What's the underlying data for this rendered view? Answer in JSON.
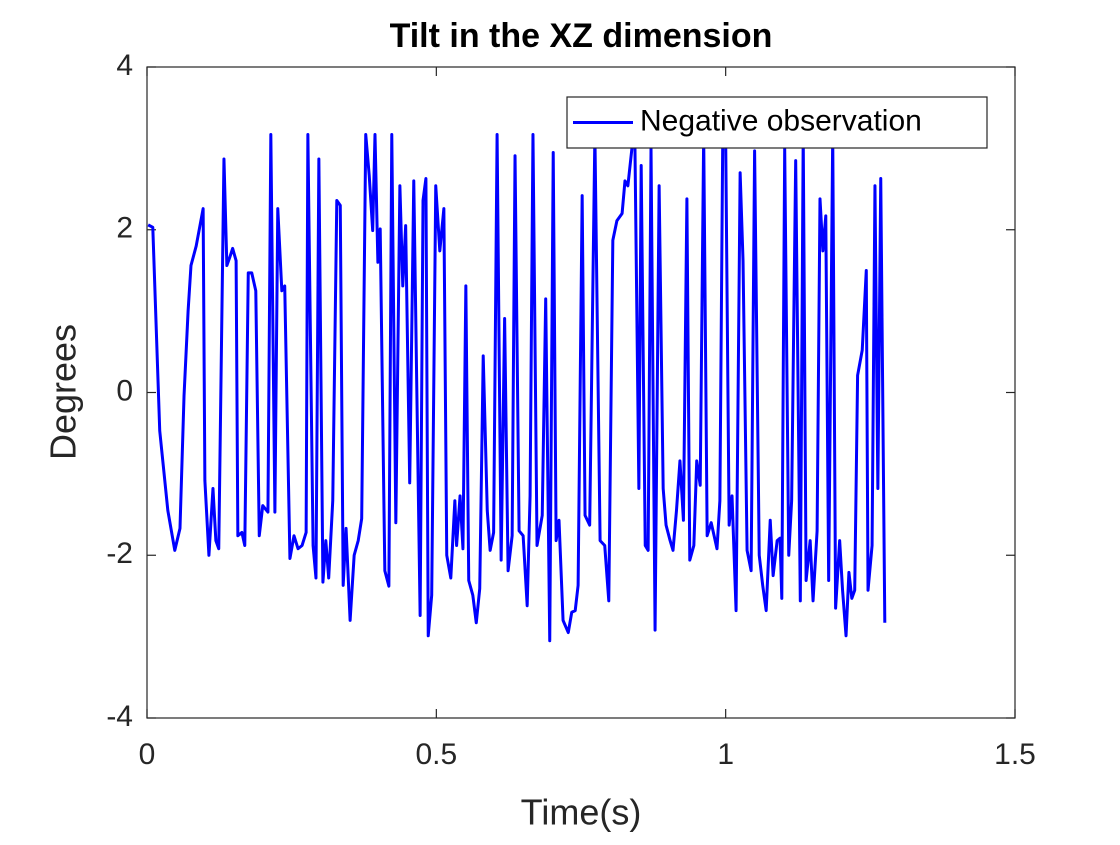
{
  "chart_data": {
    "type": "line",
    "title": "Tilt in the XZ dimension",
    "xlabel": "Time(s)",
    "ylabel": "Degrees",
    "xlim": [
      0,
      1.5
    ],
    "xticks": [
      0,
      0.5,
      1,
      1.5
    ],
    "ylim": [
      -4,
      4
    ],
    "yticks": [
      -4,
      -2,
      0,
      2,
      4
    ],
    "legend": "upper right",
    "grid": false,
    "x": [
      0.002,
      0.01,
      0.022,
      0.036,
      0.048,
      0.057,
      0.064,
      0.071,
      0.076,
      0.085,
      0.097,
      0.1,
      0.107,
      0.114,
      0.119,
      0.124,
      0.133,
      0.138,
      0.143,
      0.148,
      0.154,
      0.157,
      0.164,
      0.169,
      0.175,
      0.181,
      0.188,
      0.194,
      0.2,
      0.209,
      0.214,
      0.221,
      0.226,
      0.233,
      0.238,
      0.247,
      0.254,
      0.261,
      0.268,
      0.275,
      0.278,
      0.287,
      0.292,
      0.297,
      0.304,
      0.309,
      0.314,
      0.321,
      0.328,
      0.334,
      0.339,
      0.344,
      0.351,
      0.358,
      0.365,
      0.371,
      0.378,
      0.384,
      0.39,
      0.394,
      0.399,
      0.403,
      0.411,
      0.418,
      0.423,
      0.43,
      0.437,
      0.442,
      0.447,
      0.454,
      0.461,
      0.467,
      0.472,
      0.477,
      0.482,
      0.486,
      0.492,
      0.499,
      0.506,
      0.513,
      0.518,
      0.525,
      0.532,
      0.535,
      0.541,
      0.546,
      0.551,
      0.556,
      0.563,
      0.569,
      0.575,
      0.581,
      0.588,
      0.593,
      0.599,
      0.605,
      0.612,
      0.618,
      0.624,
      0.631,
      0.636,
      0.643,
      0.65,
      0.657,
      0.662,
      0.667,
      0.674,
      0.683,
      0.689,
      0.696,
      0.702,
      0.707,
      0.712,
      0.719,
      0.728,
      0.734,
      0.74,
      0.745,
      0.752,
      0.757,
      0.765,
      0.774,
      0.783,
      0.791,
      0.798,
      0.805,
      0.812,
      0.821,
      0.826,
      0.831,
      0.838,
      0.843,
      0.85,
      0.854,
      0.861,
      0.866,
      0.871,
      0.878,
      0.885,
      0.892,
      0.897,
      0.904,
      0.909,
      0.915,
      0.921,
      0.927,
      0.933,
      0.938,
      0.945,
      0.95,
      0.956,
      0.962,
      0.968,
      0.975,
      0.98,
      0.985,
      0.99,
      0.995,
      1.0,
      1.006,
      1.011,
      1.018,
      1.025,
      1.03,
      1.037,
      1.044,
      1.05,
      1.058,
      1.064,
      1.07,
      1.077,
      1.082,
      1.089,
      1.094,
      1.097,
      1.102,
      1.109,
      1.114,
      1.121,
      1.129,
      1.134,
      1.139,
      1.146,
      1.151,
      1.158,
      1.163,
      1.168,
      1.173,
      1.178,
      1.185,
      1.19,
      1.197,
      1.202,
      1.208,
      1.213,
      1.218,
      1.223,
      1.228,
      1.236,
      1.243,
      1.246,
      1.253,
      1.258,
      1.263,
      1.268,
      1.275
    ],
    "series": [
      {
        "name": "Negative observation",
        "color": "#0000ff",
        "values": [
          2.06,
          2.03,
          -0.47,
          -1.45,
          -1.94,
          -1.67,
          -0.04,
          1.0,
          1.56,
          1.8,
          2.26,
          -1.08,
          -2.0,
          -1.18,
          -1.82,
          -1.92,
          2.87,
          1.56,
          1.66,
          1.77,
          1.62,
          -1.76,
          -1.72,
          -1.88,
          1.47,
          1.47,
          1.25,
          -1.76,
          -1.39,
          -1.47,
          3.17,
          -1.47,
          2.26,
          1.25,
          1.31,
          -2.04,
          -1.76,
          -1.92,
          -1.88,
          -1.72,
          3.17,
          -1.88,
          -2.28,
          2.87,
          -2.33,
          -1.82,
          -2.28,
          -1.33,
          2.36,
          2.3,
          -2.37,
          -1.67,
          -2.8,
          -2.0,
          -1.82,
          -1.55,
          3.17,
          2.67,
          1.99,
          3.17,
          1.6,
          2.01,
          -2.19,
          -2.38,
          3.17,
          -1.6,
          2.54,
          1.31,
          2.05,
          -1.11,
          2.6,
          -0.32,
          -2.74,
          2.36,
          2.63,
          -2.99,
          -2.49,
          2.54,
          1.74,
          2.26,
          -2.0,
          -2.28,
          -1.33,
          -1.88,
          -1.27,
          -1.92,
          1.31,
          -2.31,
          -2.49,
          -2.83,
          -2.41,
          0.45,
          -1.45,
          -1.94,
          -1.72,
          3.17,
          -2.06,
          0.91,
          -2.19,
          -1.76,
          2.91,
          -1.7,
          -1.76,
          -2.62,
          -1.27,
          3.17,
          -1.88,
          -1.51,
          1.15,
          -3.05,
          2.95,
          -1.82,
          -1.57,
          -2.8,
          -2.95,
          -2.7,
          -2.68,
          -2.37,
          2.42,
          -1.51,
          -1.63,
          3.17,
          -1.82,
          -1.88,
          -2.56,
          1.87,
          2.11,
          2.2,
          2.6,
          2.54,
          3.0,
          3.16,
          -1.18,
          2.79,
          -1.88,
          -1.94,
          3.0,
          -2.92,
          2.54,
          -1.18,
          -1.63,
          -1.82,
          -1.94,
          -1.45,
          -0.84,
          -1.57,
          2.38,
          -2.06,
          -1.88,
          -0.84,
          -1.14,
          3.16,
          -1.76,
          -1.6,
          -1.76,
          -1.92,
          -1.33,
          3.16,
          3.12,
          -1.63,
          -1.27,
          -2.68,
          2.7,
          1.62,
          -1.94,
          -2.19,
          2.97,
          -2.0,
          -2.37,
          -2.68,
          -1.57,
          -2.25,
          -1.82,
          -1.79,
          -2.53,
          3.0,
          -2.0,
          -1.33,
          2.85,
          -2.56,
          3.16,
          -2.31,
          -1.82,
          -2.56,
          -1.7,
          2.38,
          1.74,
          2.17,
          -2.31,
          3.16,
          -2.65,
          -1.82,
          -2.43,
          -2.99,
          -2.21,
          -2.53,
          -2.43,
          0.21,
          0.52,
          1.5,
          -2.43,
          -1.88,
          2.54,
          -1.18,
          2.63,
          -2.83
        ]
      }
    ]
  }
}
